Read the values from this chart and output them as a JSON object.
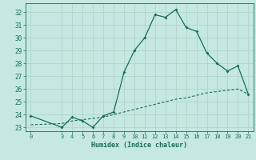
{
  "xlabel": "Humidex (Indice chaleur)",
  "background_color": "#c5e8e2",
  "grid_color": "#b0d4cc",
  "line_color": "#1a6b5a",
  "x_main": [
    0,
    3,
    4,
    5,
    6,
    7,
    8,
    9,
    10,
    11,
    12,
    13,
    14,
    15,
    16,
    17,
    18,
    19,
    20,
    21
  ],
  "y_main": [
    23.9,
    23.0,
    23.8,
    23.5,
    23.0,
    23.9,
    24.2,
    27.3,
    29.0,
    30.0,
    31.8,
    31.6,
    32.2,
    30.8,
    30.5,
    28.8,
    28.0,
    27.4,
    27.8,
    25.6
  ],
  "x_dashed": [
    0,
    3,
    4,
    5,
    6,
    7,
    8,
    9,
    10,
    11,
    12,
    13,
    14,
    15,
    16,
    17,
    18,
    19,
    20,
    21
  ],
  "y_dashed": [
    23.2,
    23.3,
    23.5,
    23.6,
    23.7,
    23.8,
    24.0,
    24.2,
    24.4,
    24.6,
    24.8,
    25.0,
    25.2,
    25.3,
    25.5,
    25.7,
    25.8,
    25.9,
    26.0,
    25.6
  ],
  "xlim": [
    -0.5,
    21.5
  ],
  "ylim": [
    22.7,
    32.7
  ],
  "yticks": [
    23,
    24,
    25,
    26,
    27,
    28,
    29,
    30,
    31,
    32
  ],
  "xticks": [
    0,
    3,
    4,
    5,
    6,
    7,
    8,
    9,
    10,
    11,
    12,
    13,
    14,
    15,
    16,
    17,
    18,
    19,
    20,
    21
  ]
}
